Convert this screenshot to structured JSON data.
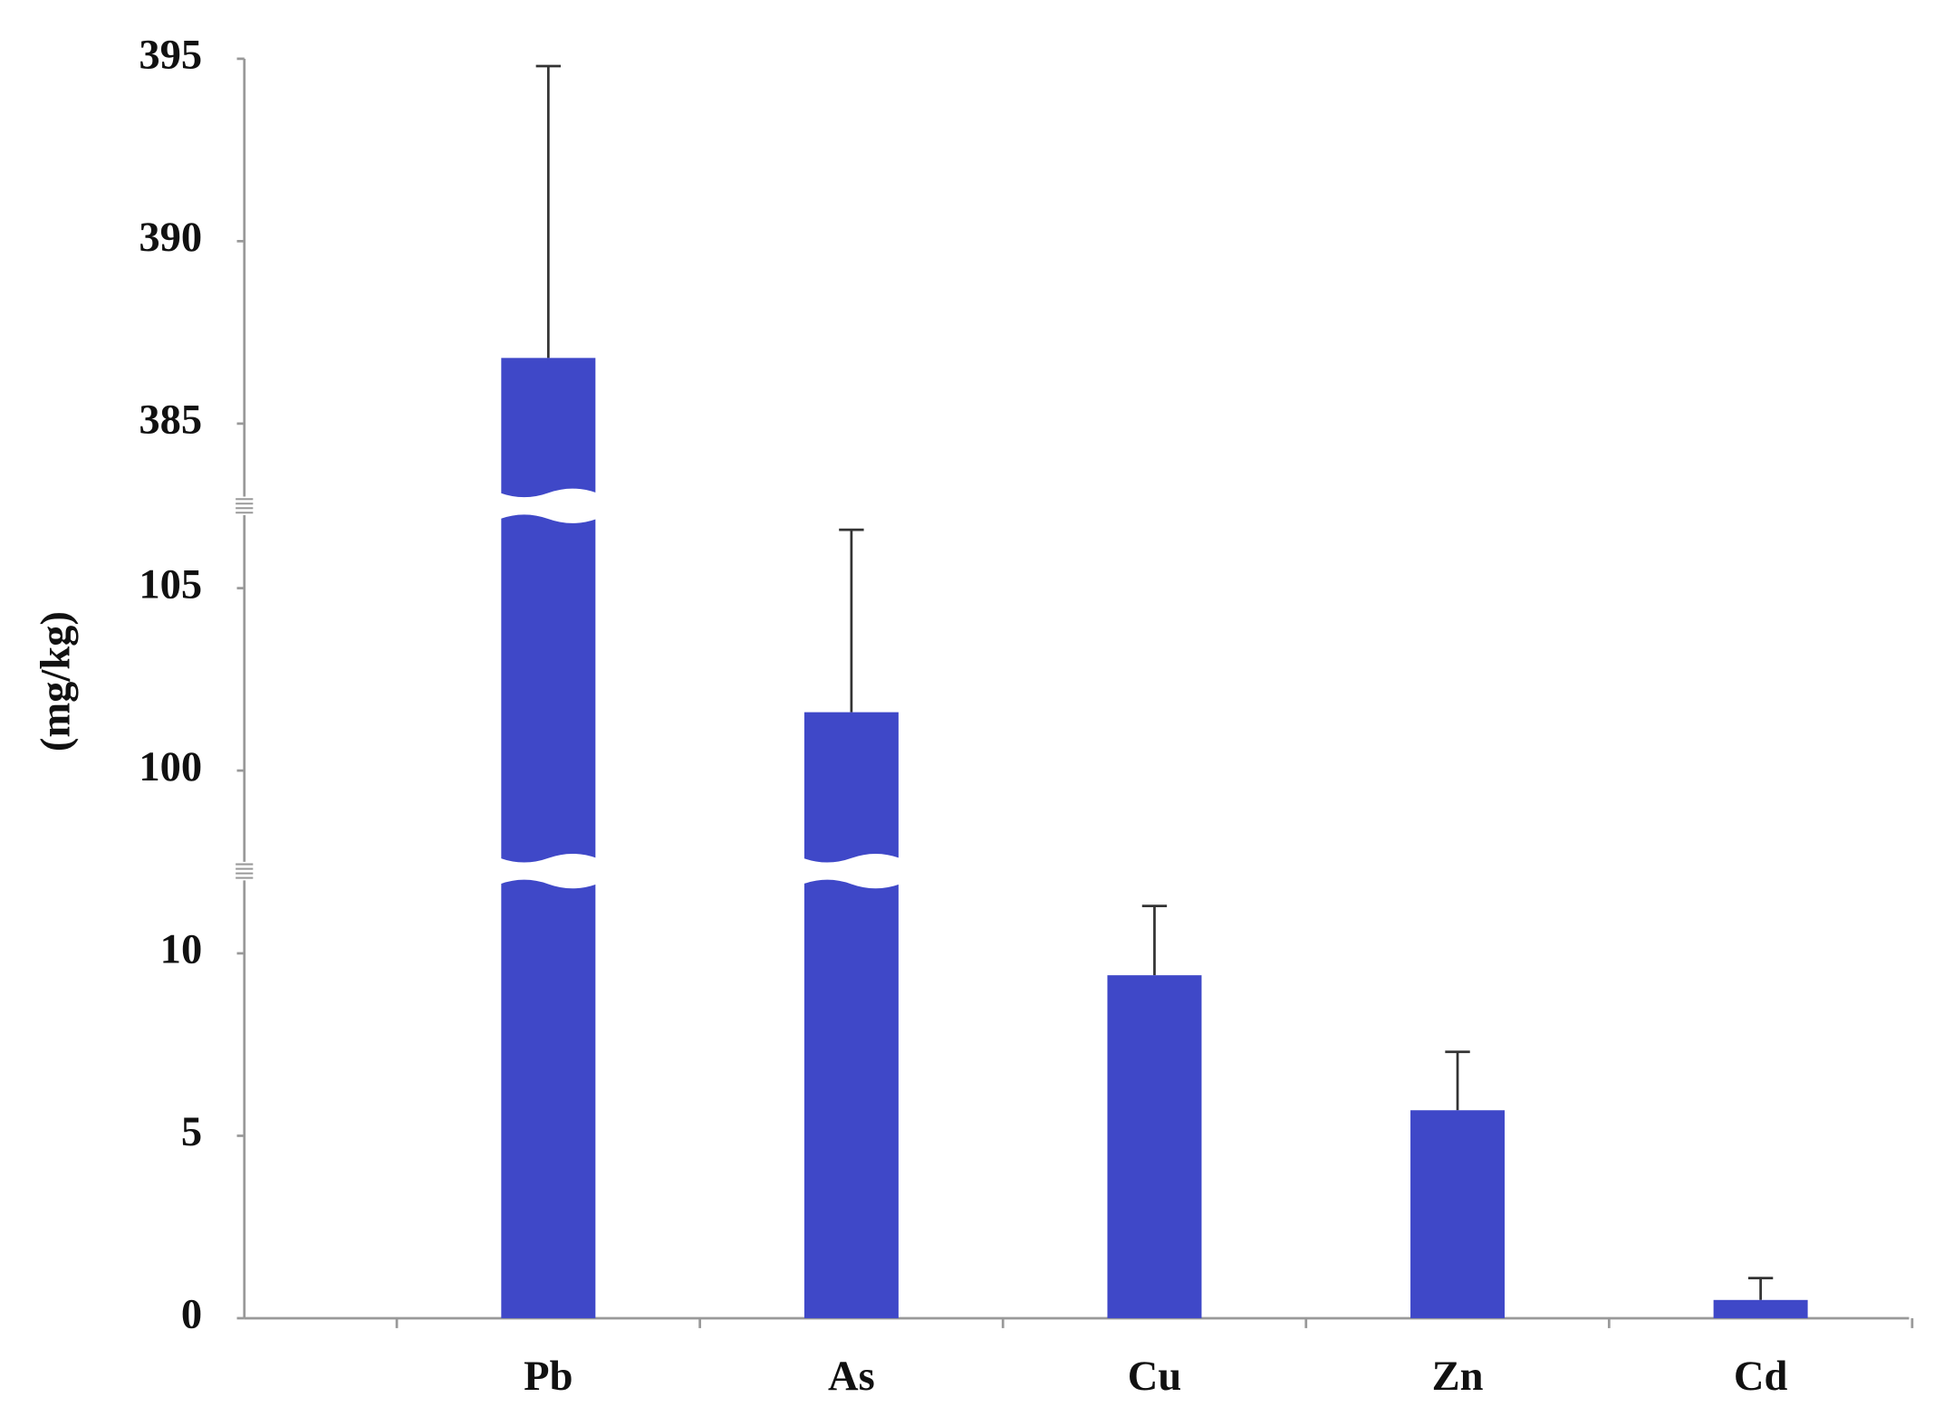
{
  "chart_data": {
    "type": "bar",
    "y_label": "(mg/kg)",
    "categories": [
      "Pb",
      "As",
      "Cu",
      "Zn",
      "Cd"
    ],
    "values": [
      386.8,
      101.6,
      9.4,
      5.7,
      0.5
    ],
    "errors": [
      8.0,
      5.0,
      1.9,
      1.6,
      0.6
    ],
    "color": "#3f48c8",
    "y_segments": [
      {
        "ylim": [
          0,
          12
        ],
        "yticks": [
          0,
          5,
          10
        ]
      },
      {
        "ylim": [
          97.5,
          107
        ],
        "yticks": [
          100,
          105
        ]
      },
      {
        "ylim": [
          383,
          395
        ],
        "yticks": [
          385,
          390,
          395
        ]
      }
    ]
  }
}
